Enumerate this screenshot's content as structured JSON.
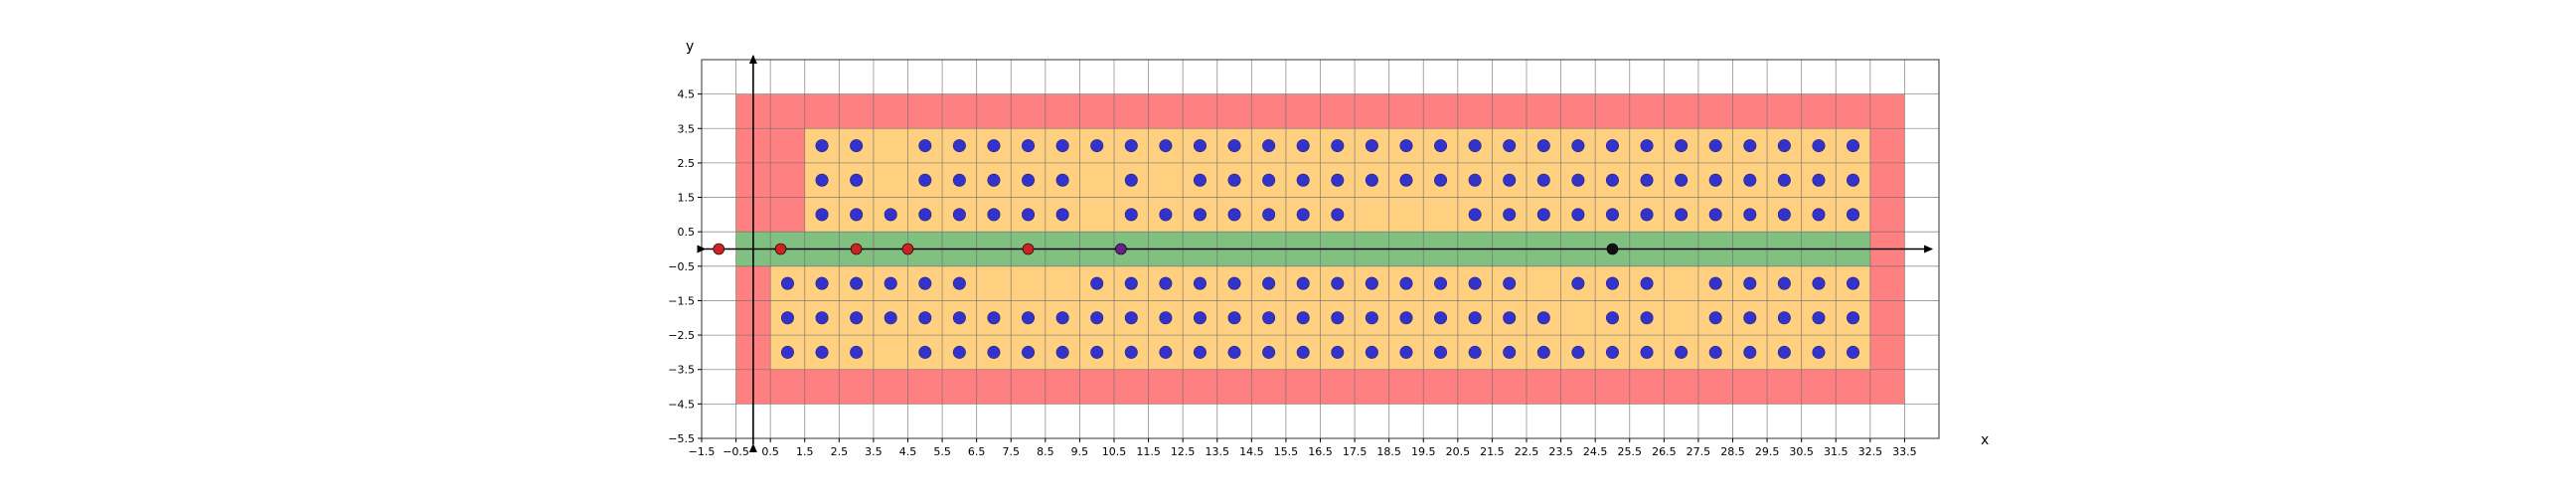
{
  "chart_data": {
    "type": "scatter",
    "title": "",
    "xlabel": "x",
    "ylabel": "y",
    "xlim": [
      -1.5,
      34.5
    ],
    "ylim": [
      -5.5,
      5.5
    ],
    "x_ticks": [
      "-1.5",
      "-0.5",
      "0.5",
      "1.5",
      "2.5",
      "3.5",
      "4.5",
      "5.5",
      "6.5",
      "7.5",
      "8.5",
      "9.5",
      "10.5",
      "11.5",
      "12.5",
      "13.5",
      "14.5",
      "15.5",
      "16.5",
      "17.5",
      "18.5",
      "19.5",
      "20.5",
      "21.5",
      "22.5",
      "23.5",
      "24.5",
      "25.5",
      "26.5",
      "27.5",
      "28.5",
      "29.5",
      "30.5",
      "31.5",
      "32.5",
      "33.5"
    ],
    "y_ticks": [
      "4.5",
      "3.5",
      "2.5",
      "1.5",
      "0.5",
      "-0.5",
      "-1.5",
      "-2.5",
      "-3.5",
      "-4.5",
      "-5.5"
    ],
    "grid": true,
    "regions": [
      {
        "color": "#ff8080",
        "x": [
          -0.5,
          33.5
        ],
        "y": [
          -4.5,
          4.5
        ]
      },
      {
        "color": "#ffd080",
        "x": [
          1.5,
          32.5
        ],
        "y": [
          0.5,
          3.5
        ]
      },
      {
        "color": "#ffd080",
        "x": [
          0.5,
          32.5
        ],
        "y": [
          -3.5,
          -0.5
        ]
      },
      {
        "color": "#80c080",
        "x": [
          -0.5,
          32.5
        ],
        "y": [
          -0.5,
          0.5
        ]
      }
    ],
    "point_colors": {
      "blue": "#3333cc",
      "red": "#cc2222",
      "purple": "#662288",
      "black": "#111111"
    },
    "rows": [
      {
        "y": 3,
        "color": "blue",
        "x": [
          2,
          3,
          5,
          6,
          7,
          8,
          9,
          10,
          11,
          12,
          13,
          14,
          15,
          16,
          17,
          18,
          19,
          20,
          21,
          22,
          23,
          24,
          25,
          26,
          27,
          28,
          29,
          30,
          31,
          32
        ]
      },
      {
        "y": 2,
        "color": "blue",
        "x": [
          2,
          3,
          5,
          6,
          7,
          8,
          9,
          11,
          13,
          14,
          15,
          16,
          17,
          18,
          19,
          20,
          21,
          22,
          23,
          24,
          25,
          26,
          27,
          28,
          29,
          30,
          31,
          32
        ]
      },
      {
        "y": 1,
        "color": "blue",
        "x": [
          2,
          3,
          4,
          5,
          6,
          7,
          8,
          9,
          11,
          12,
          13,
          14,
          15,
          16,
          17,
          21,
          22,
          23,
          24,
          25,
          26,
          27,
          28,
          29,
          30,
          31,
          32
        ]
      },
      {
        "y": -1,
        "color": "blue",
        "x": [
          1,
          2,
          3,
          4,
          5,
          6,
          10,
          11,
          12,
          13,
          14,
          15,
          16,
          17,
          18,
          19,
          20,
          21,
          22,
          24,
          25,
          26,
          28,
          29,
          30,
          31,
          32
        ]
      },
      {
        "y": -2,
        "color": "blue",
        "x": [
          1,
          2,
          3,
          4,
          5,
          6,
          7,
          8,
          9,
          10,
          11,
          12,
          13,
          14,
          15,
          16,
          17,
          18,
          19,
          20,
          21,
          22,
          23,
          25,
          26,
          28,
          29,
          30,
          31,
          32
        ]
      },
      {
        "y": -3,
        "color": "blue",
        "x": [
          1,
          2,
          3,
          5,
          6,
          7,
          8,
          9,
          10,
          11,
          12,
          13,
          14,
          15,
          16,
          17,
          18,
          19,
          20,
          21,
          22,
          23,
          24,
          25,
          26,
          27,
          28,
          29,
          30,
          31,
          32
        ]
      }
    ],
    "axis_points": [
      {
        "x": -1,
        "y": 0,
        "color": "red"
      },
      {
        "x": 0.8,
        "y": 0,
        "color": "red"
      },
      {
        "x": 3,
        "y": 0,
        "color": "red"
      },
      {
        "x": 4.5,
        "y": 0,
        "color": "red"
      },
      {
        "x": 8,
        "y": 0,
        "color": "red"
      },
      {
        "x": 10.7,
        "y": 0,
        "color": "purple"
      },
      {
        "x": 25,
        "y": 0,
        "color": "black"
      }
    ]
  }
}
